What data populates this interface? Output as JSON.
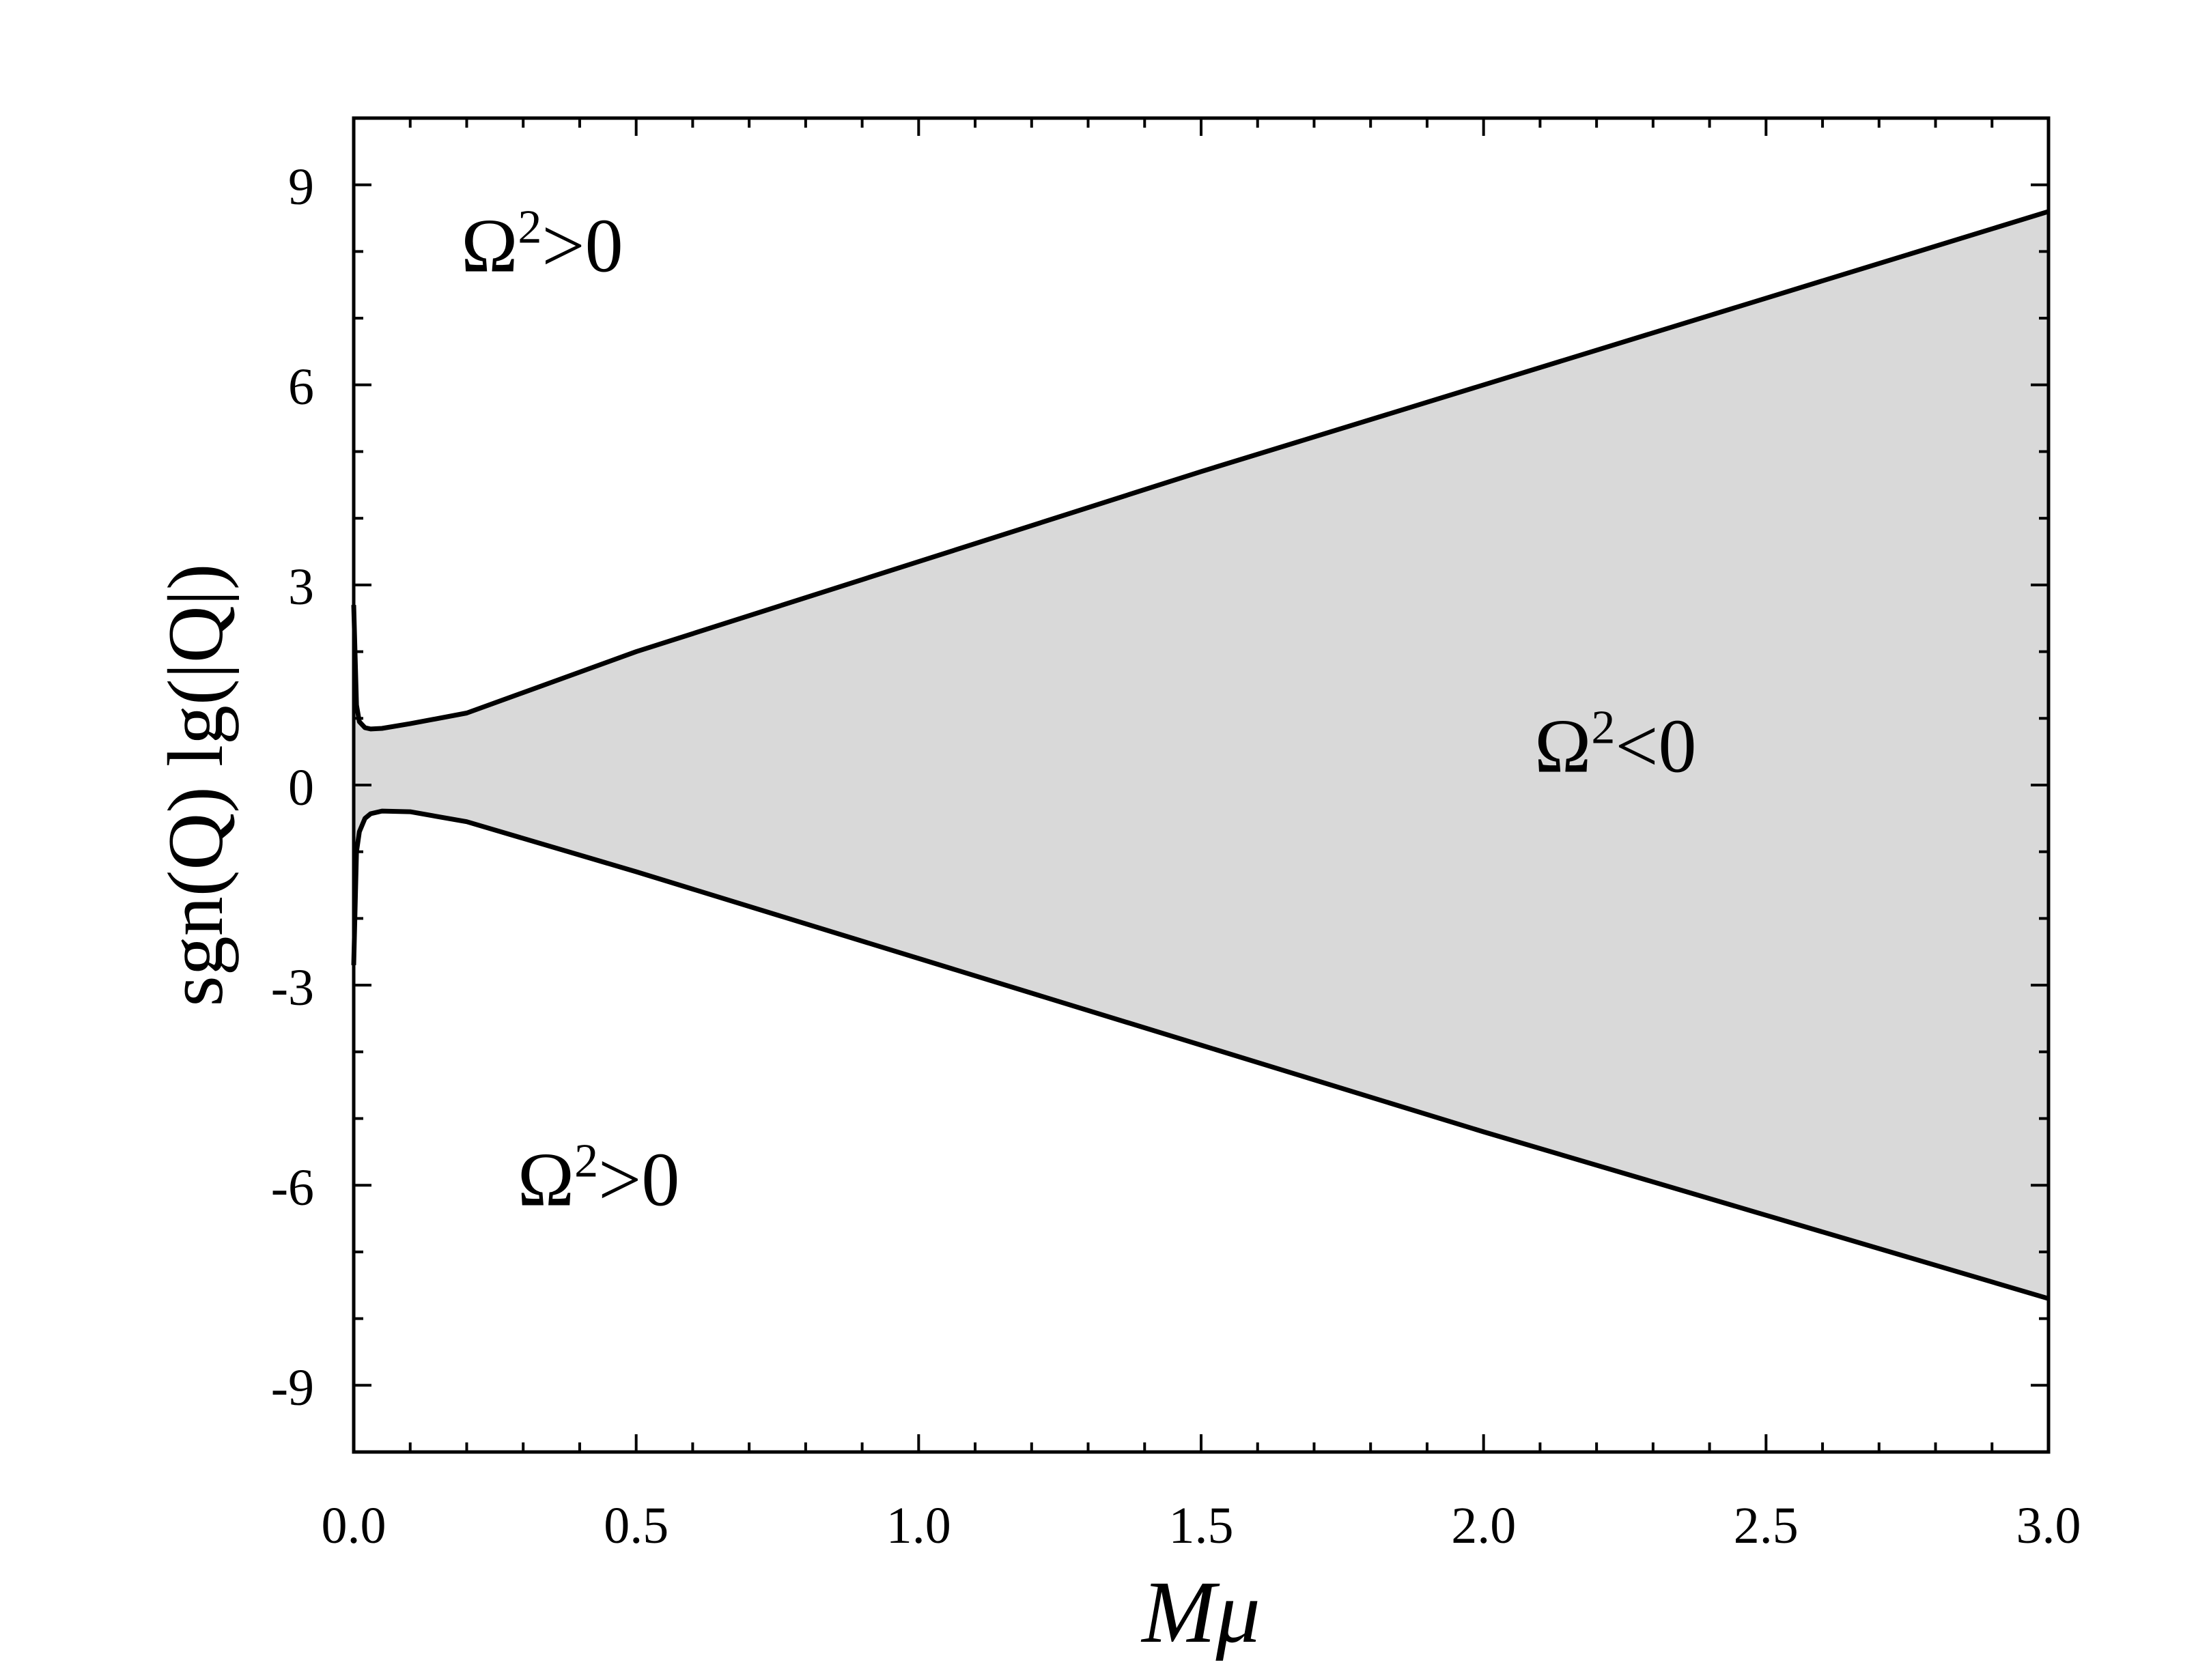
{
  "chart_data": {
    "type": "area",
    "title": "",
    "xlabel": "Mμ",
    "ylabel": "sgn(Q) lg(|Q|)",
    "xlim": [
      0.0,
      3.0
    ],
    "ylim": [
      -10,
      10
    ],
    "x_ticks": [
      "0.0",
      "0.5",
      "1.0",
      "1.5",
      "2.0",
      "2.5",
      "3.0"
    ],
    "y_ticks": [
      "-9",
      "-6",
      "-3",
      "0",
      "3",
      "6",
      "9"
    ],
    "grid": false,
    "legend": "none",
    "fill_color": "#d9d9d9",
    "line_color": "#000000",
    "series": [
      {
        "x": [
          0.0,
          0.005,
          0.01,
          0.02,
          0.03,
          0.05,
          0.1,
          0.2,
          0.5,
          1.0,
          1.5,
          2.0,
          2.5,
          3.0
        ],
        "values": [
          2.7,
          1.2,
          0.95,
          0.86,
          0.84,
          0.85,
          0.92,
          1.08,
          2.0,
          3.35,
          4.7,
          6.0,
          7.3,
          8.6
        ]
      },
      {
        "x": [
          0.0,
          0.005,
          0.01,
          0.02,
          0.03,
          0.05,
          0.1,
          0.2,
          0.5,
          1.0,
          1.5,
          2.0,
          2.5,
          3.0
        ],
        "values": [
          -2.7,
          -1.0,
          -0.7,
          -0.5,
          -0.43,
          -0.39,
          -0.4,
          -0.55,
          -1.3,
          -2.6,
          -3.9,
          -5.2,
          -6.45,
          -7.7
        ]
      }
    ],
    "annotations": [
      {
        "text": "Ω²>0",
        "base": "Ω",
        "sup": "2",
        "rest": ">0",
        "x": 0.19,
        "y": 7.7
      },
      {
        "text": "Ω²<0",
        "base": "Ω",
        "sup": "2",
        "rest": "<0",
        "x": 2.09,
        "y": 0.2
      },
      {
        "text": "Ω²>0",
        "base": "Ω",
        "sup": "2",
        "rest": ">0",
        "x": 0.29,
        "y": -6.3
      }
    ]
  }
}
